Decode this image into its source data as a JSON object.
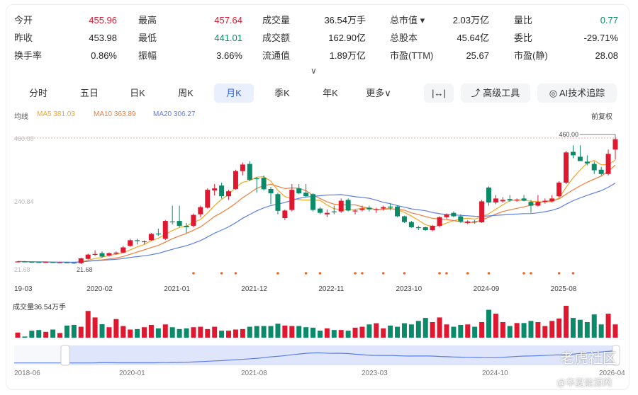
{
  "stats": [
    [
      {
        "label": "今开",
        "value": "455.96",
        "tone": "red"
      },
      {
        "label": "最高",
        "value": "457.64",
        "tone": "red"
      },
      {
        "label": "成交量",
        "value": "36.54万手",
        "tone": ""
      },
      {
        "label": "总市值 ▾",
        "value": "2.03万亿",
        "tone": ""
      },
      {
        "label": "量比",
        "value": "0.77",
        "tone": "green"
      }
    ],
    [
      {
        "label": "昨收",
        "value": "453.98",
        "tone": ""
      },
      {
        "label": "最低",
        "value": "441.01",
        "tone": "green"
      },
      {
        "label": "成交额",
        "value": "162.90亿",
        "tone": ""
      },
      {
        "label": "总股本",
        "value": "45.64亿",
        "tone": ""
      },
      {
        "label": "委比",
        "value": "-29.71%",
        "tone": ""
      }
    ],
    [
      {
        "label": "换手率",
        "value": "0.86%",
        "tone": ""
      },
      {
        "label": "振幅",
        "value": "3.66%",
        "tone": ""
      },
      {
        "label": "流通值",
        "value": "1.89万亿",
        "tone": ""
      },
      {
        "label": "市盈(TTM)",
        "value": "25.67",
        "tone": ""
      },
      {
        "label": "市盈(静)",
        "value": "28.08",
        "tone": ""
      }
    ]
  ],
  "expand_icon": "chevron-down-icon",
  "tabs": [
    "分时",
    "五日",
    "日K",
    "周K",
    "月K",
    "季K",
    "年K",
    "更多∨"
  ],
  "active_tab": "月K",
  "tools": {
    "fit": "|↔|",
    "advanced": "高级工具",
    "ai": "AI技术追踪"
  },
  "ma_legend": {
    "label": "均线",
    "ma5": "MA5 381.03",
    "ma10": "MA10 363.89",
    "ma20": "MA20 306.27",
    "adjust": "前复权"
  },
  "colors": {
    "up": "#e0182f",
    "down": "#0b8a6a",
    "ma5": "#f5a623",
    "ma10": "#f07c3a",
    "ma20": "#5b7de6"
  },
  "chart_data": {
    "type": "candlestick",
    "y_labels": [
      "460.00",
      "240.84",
      "21.68"
    ],
    "ylim": [
      21.68,
      460
    ],
    "max_label": "460.00",
    "min_label": "21.68",
    "x_labels": [
      "19-03",
      "2020-02",
      "2021-01",
      "2021-12",
      "2022-11",
      "2023-10",
      "2024-09",
      "2025-08"
    ],
    "ohlc": [
      [
        30,
        32,
        28,
        31
      ],
      [
        31,
        33,
        29,
        30
      ],
      [
        30,
        31,
        28,
        29
      ],
      [
        29,
        30,
        27,
        28
      ],
      [
        28,
        30,
        27,
        29
      ],
      [
        29,
        30,
        26,
        27
      ],
      [
        27,
        29,
        26,
        28
      ],
      [
        28,
        29,
        25,
        27
      ],
      [
        27,
        28,
        23,
        25
      ],
      [
        25,
        44,
        22,
        42
      ],
      [
        40,
        58,
        38,
        55
      ],
      [
        54,
        70,
        50,
        57
      ],
      [
        60,
        66,
        45,
        48
      ],
      [
        52,
        62,
        48,
        60
      ],
      [
        58,
        66,
        55,
        62
      ],
      [
        62,
        85,
        60,
        80
      ],
      [
        85,
        110,
        82,
        105
      ],
      [
        105,
        110,
        90,
        102
      ],
      [
        98,
        104,
        92,
        101
      ],
      [
        105,
        130,
        103,
        127
      ],
      [
        128,
        145,
        120,
        125
      ],
      [
        110,
        175,
        105,
        172
      ],
      [
        170,
        225,
        160,
        168
      ],
      [
        172,
        225,
        150,
        155
      ],
      [
        155,
        165,
        130,
        150
      ],
      [
        155,
        198,
        150,
        193
      ],
      [
        195,
        225,
        185,
        220
      ],
      [
        218,
        285,
        215,
        280
      ],
      [
        278,
        300,
        260,
        285
      ],
      [
        295,
        305,
        250,
        258
      ],
      [
        258,
        280,
        245,
        275
      ],
      [
        283,
        350,
        280,
        345
      ],
      [
        345,
        375,
        330,
        368
      ],
      [
        370,
        380,
        310,
        315
      ],
      [
        320,
        325,
        270,
        318
      ],
      [
        322,
        330,
        278,
        282
      ],
      [
        283,
        290,
        230,
        268
      ],
      [
        265,
        270,
        195,
        207
      ],
      [
        182,
        212,
        175,
        208
      ],
      [
        210,
        300,
        205,
        280
      ],
      [
        285,
        300,
        265,
        268
      ],
      [
        270,
        300,
        255,
        258
      ],
      [
        265,
        268,
        205,
        210
      ],
      [
        215,
        220,
        195,
        200
      ],
      [
        195,
        212,
        185,
        200
      ],
      [
        205,
        225,
        195,
        203
      ],
      [
        205,
        250,
        200,
        242
      ],
      [
        245,
        250,
        205,
        208
      ],
      [
        205,
        212,
        195,
        208
      ],
      [
        210,
        225,
        205,
        215
      ],
      [
        218,
        225,
        205,
        212
      ],
      [
        210,
        218,
        200,
        213
      ],
      [
        215,
        225,
        208,
        220
      ],
      [
        222,
        232,
        210,
        218
      ],
      [
        222,
        225,
        185,
        188
      ],
      [
        188,
        190,
        165,
        168
      ],
      [
        168,
        172,
        148,
        150
      ],
      [
        150,
        155,
        140,
        148
      ],
      [
        150,
        152,
        138,
        140
      ],
      [
        140,
        158,
        136,
        155
      ],
      [
        155,
        188,
        150,
        185
      ],
      [
        185,
        198,
        180,
        195
      ],
      [
        200,
        205,
        185,
        188
      ],
      [
        188,
        195,
        165,
        170
      ],
      [
        165,
        174,
        160,
        170
      ],
      [
        170,
        175,
        162,
        168
      ],
      [
        167,
        245,
        165,
        240
      ],
      [
        288,
        292,
        225,
        236
      ],
      [
        236,
        262,
        230,
        250
      ],
      [
        240,
        255,
        235,
        245
      ],
      [
        248,
        262,
        238,
        243
      ],
      [
        243,
        250,
        238,
        246
      ],
      [
        250,
        262,
        240,
        242
      ],
      [
        238,
        245,
        200,
        225
      ],
      [
        225,
        262,
        222,
        238
      ],
      [
        238,
        250,
        232,
        242
      ],
      [
        240,
        262,
        236,
        250
      ],
      [
        258,
        310,
        255,
        305
      ],
      [
        305,
        415,
        300,
        410
      ],
      [
        412,
        435,
        390,
        400
      ],
      [
        395,
        435,
        380,
        380
      ],
      [
        378,
        400,
        365,
        372
      ],
      [
        370,
        378,
        335,
        348
      ],
      [
        350,
        360,
        330,
        335
      ],
      [
        335,
        420,
        330,
        405
      ],
      [
        420,
        460,
        385,
        455.96
      ]
    ],
    "volume_label": "成交量36.54万手",
    "volume": [
      14.1,
      3.2,
      19.2,
      21.1,
      16,
      22.4,
      12.8,
      33.3,
      35.2,
      30.1,
      73.6,
      55.7,
      37.1,
      28.8,
      51.2,
      32,
      22.4,
      23.7,
      28.8,
      35.2,
      25.6,
      36.5,
      28.8,
      23.7,
      25.6,
      28.8,
      30.1,
      23.7,
      30.1,
      19.2,
      19.2,
      22.4,
      23.7,
      30.1,
      32,
      32,
      32,
      38.4,
      33.3,
      32,
      32,
      28.8,
      27.5,
      19.2,
      25.6,
      21.1,
      21.1,
      19.2,
      27.5,
      30.1,
      36.5,
      39.7,
      25.6,
      33.3,
      30.1,
      39.7,
      36.5,
      46.1,
      54.4,
      42.9,
      55.7,
      36.5,
      30.1,
      35.2,
      36.5,
      30.1,
      42.9,
      76.8,
      65.9,
      42.9,
      32,
      40.3,
      40.3,
      46.1,
      42.9,
      32,
      46.1,
      52.5,
      87.7,
      54.4,
      49.3,
      42.9,
      64,
      36.5,
      65.9,
      36.54
    ],
    "marker_indices": [
      25,
      29,
      31,
      37,
      41,
      43,
      48,
      49,
      52,
      55,
      60,
      61,
      64,
      67,
      72,
      73,
      77,
      79
    ],
    "navigator_labels": [
      "2018-06",
      "2020-01",
      "2021-08",
      "2023-03",
      "2024-10",
      "2026-04"
    ]
  },
  "watermark": {
    "brand": "老虎社区",
    "source": "@华夏能源网"
  }
}
